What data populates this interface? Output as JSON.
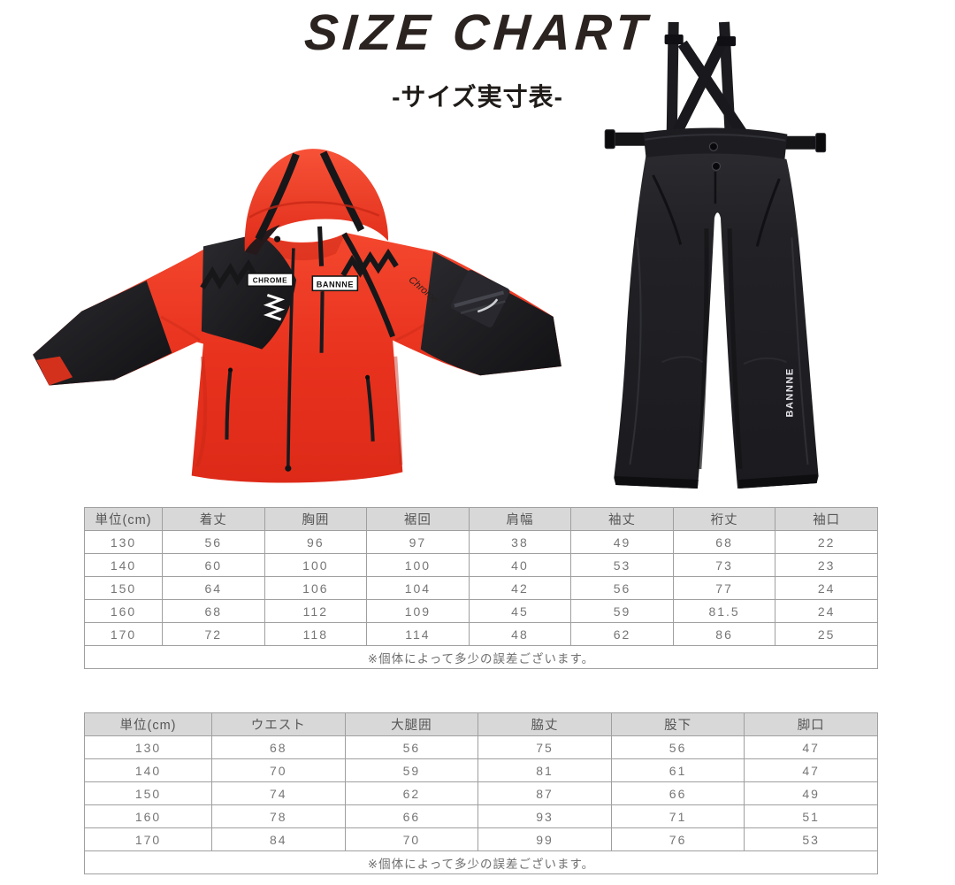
{
  "header": {
    "title": "SIZE CHART",
    "subtitle": "-サイズ実寸表-"
  },
  "products": {
    "jacket": {
      "alt": "red and black kids ski jacket with hood",
      "chest_label_left": "CHROME",
      "chest_label_right": "BANNNE",
      "sleeve_script": "Chrome",
      "main_color": "#e8321e",
      "accent_color": "#1a181b"
    },
    "pants": {
      "alt": "black kids ski bib pants with crossed suspenders",
      "leg_label": "BANNNE",
      "main_color": "#202024"
    }
  },
  "tables": [
    {
      "name": "jacket-measurements",
      "headers": [
        "単位(cm)",
        "着丈",
        "胸囲",
        "裾回",
        "肩幅",
        "袖丈",
        "裄丈",
        "袖口"
      ],
      "rows": [
        [
          "130",
          "56",
          "96",
          "97",
          "38",
          "49",
          "68",
          "22"
        ],
        [
          "140",
          "60",
          "100",
          "100",
          "40",
          "53",
          "73",
          "23"
        ],
        [
          "150",
          "64",
          "106",
          "104",
          "42",
          "56",
          "77",
          "24"
        ],
        [
          "160",
          "68",
          "112",
          "109",
          "45",
          "59",
          "81.5",
          "24"
        ],
        [
          "170",
          "72",
          "118",
          "114",
          "48",
          "62",
          "86",
          "25"
        ]
      ],
      "note": "※個体によって多少の誤差ございます。"
    },
    {
      "name": "pants-measurements",
      "headers": [
        "単位(cm)",
        "ウエスト",
        "大腿囲",
        "脇丈",
        "股下",
        "脚口"
      ],
      "rows": [
        [
          "130",
          "68",
          "56",
          "75",
          "56",
          "47"
        ],
        [
          "140",
          "70",
          "59",
          "81",
          "61",
          "47"
        ],
        [
          "150",
          "74",
          "62",
          "87",
          "66",
          "49"
        ],
        [
          "160",
          "78",
          "66",
          "93",
          "71",
          "51"
        ],
        [
          "170",
          "84",
          "70",
          "99",
          "76",
          "53"
        ]
      ],
      "note": "※個体によって多少の誤差ございます。"
    }
  ],
  "palette": {
    "table_header_bg": "#d8d8d8",
    "table_border": "#9f9f9f",
    "table_text": "#767676",
    "title_text": "#2b2320"
  }
}
